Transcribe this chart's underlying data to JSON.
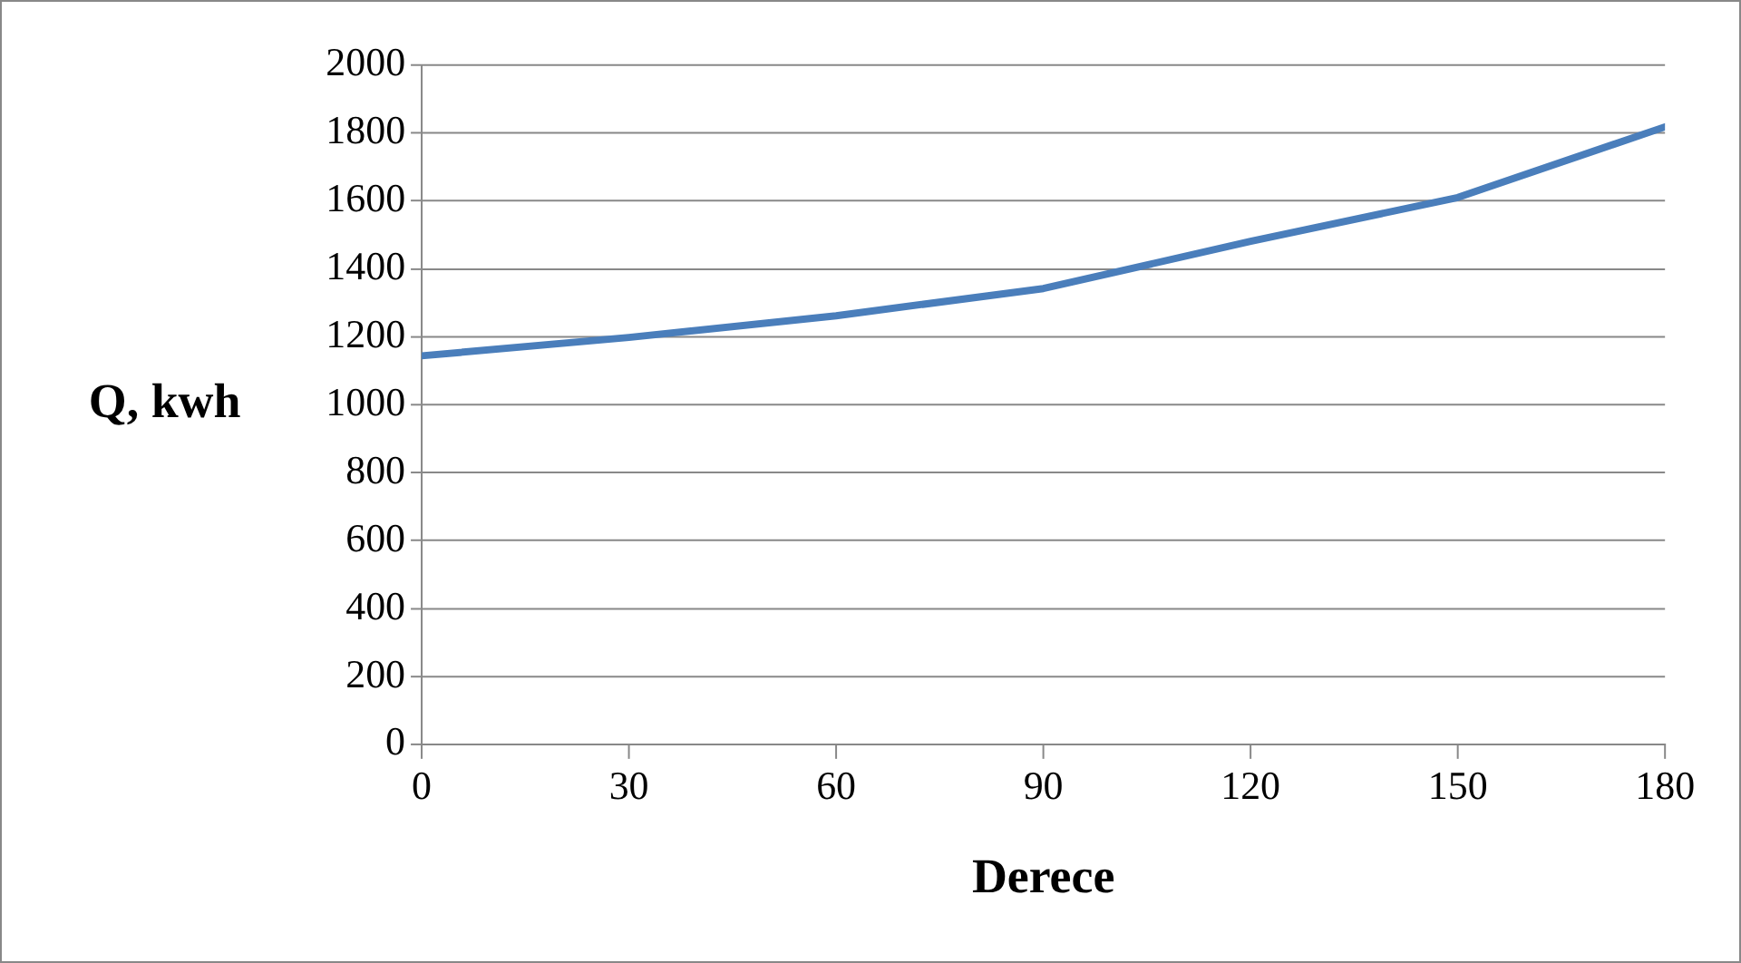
{
  "chart_data": {
    "type": "line",
    "xlabel": "Derece",
    "ylabel": "Q, kwh",
    "x": [
      0,
      30,
      60,
      90,
      120,
      150,
      180
    ],
    "series": [
      {
        "color": "#4a7ebb",
        "values": [
          1144,
          1198,
          1262,
          1342,
          1481,
          1610,
          1818
        ]
      }
    ],
    "xlim": [
      0,
      180
    ],
    "xticks": [
      0,
      30,
      60,
      90,
      120,
      150,
      180
    ],
    "ylim": [
      0,
      2000
    ],
    "yticks": [
      0,
      200,
      400,
      600,
      800,
      1000,
      1200,
      1400,
      1600,
      1800,
      2000
    ],
    "grid": "y",
    "legend": false,
    "marker": "none",
    "line_style": "solid"
  }
}
